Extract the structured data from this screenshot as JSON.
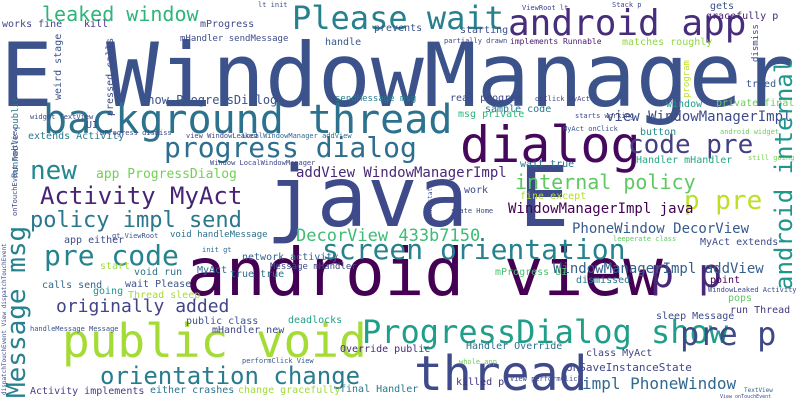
{
  "words": [
    {
      "text": "E WindowManager",
      "color": "#3b528b",
      "vertical": false
    },
    {
      "text": "android view",
      "color": "#440154",
      "vertical": false
    },
    {
      "text": "java E",
      "color": "#3e4a89",
      "vertical": false
    },
    {
      "text": "dialog",
      "color": "#46085c",
      "vertical": false
    },
    {
      "text": "background thread",
      "color": "#2c728e",
      "vertical": false
    },
    {
      "text": "public void",
      "color": "#a5db36",
      "vertical": false
    },
    {
      "text": "thread",
      "color": "#3e4a89",
      "vertical": false
    },
    {
      "text": "android app",
      "color": "#472d7b",
      "vertical": false
    },
    {
      "text": "Please wait",
      "color": "#27808e",
      "vertical": false
    },
    {
      "text": "ProgressDialog show",
      "color": "#1f9e89",
      "vertical": false
    },
    {
      "text": "progress dialog",
      "color": "#2e6e8e",
      "vertical": false
    },
    {
      "text": "code pre",
      "color": "#433e85",
      "vertical": false
    },
    {
      "text": "p pre",
      "color": "#bddf26",
      "vertical": false
    },
    {
      "text": "p p",
      "color": "#482878",
      "vertical": false
    },
    {
      "text": "pre p",
      "color": "#3e4989",
      "vertical": false
    },
    {
      "text": "screen orientation",
      "color": "#26828e",
      "vertical": false
    },
    {
      "text": "orientation change",
      "color": "#287c8e",
      "vertical": false
    },
    {
      "text": "Activity MyAct",
      "color": "#482475",
      "vertical": false
    },
    {
      "text": "policy impl send",
      "color": "#2a778e",
      "vertical": false
    },
    {
      "text": "pre code",
      "color": "#25838e",
      "vertical": false
    },
    {
      "text": "new",
      "color": "#23888e",
      "vertical": false
    },
    {
      "text": "internal policy",
      "color": "#5ec962",
      "vertical": false
    },
    {
      "text": "DecorView 433b7150",
      "color": "#3dbc74",
      "vertical": false
    },
    {
      "text": "originally added",
      "color": "#414487",
      "vertical": false
    },
    {
      "text": "leaked window",
      "color": "#2fb47c",
      "vertical": false
    },
    {
      "text": "view WindowManagerImpl",
      "color": "#3e4c8a",
      "vertical": false
    },
    {
      "text": "WindowManagerImpl java",
      "color": "#440154",
      "vertical": false
    },
    {
      "text": "PhoneWindow DecorView",
      "color": "#375a8c",
      "vertical": false
    },
    {
      "text": "WindowManagerImpl addView",
      "color": "#34608d",
      "vertical": false
    },
    {
      "text": "impl PhoneWindow",
      "color": "#31688e",
      "vertical": false
    },
    {
      "text": "addView WindowManagerImpl",
      "color": "#482878",
      "vertical": false
    },
    {
      "text": "show ProgressDialog",
      "color": "#3b528b",
      "vertical": false
    },
    {
      "text": "app ProgressDialog",
      "color": "#73d055",
      "vertical": false
    },
    {
      "text": "onSaveInstanceState",
      "color": "#3f4788",
      "vertical": false
    },
    {
      "text": "class MyAct",
      "color": "#404387",
      "vertical": false
    },
    {
      "text": "real program",
      "color": "#3e4a89",
      "vertical": false
    },
    {
      "text": "sample code",
      "color": "#2a788e",
      "vertical": false
    },
    {
      "text": "matches roughly",
      "color": "#8fd744",
      "vertical": false
    },
    {
      "text": "implements Runnable",
      "color": "#481a6c",
      "vertical": false
    },
    {
      "text": "fine except",
      "color": "#b5de2b",
      "vertical": false
    },
    {
      "text": "dismissed",
      "color": "#2a788e",
      "vertical": false
    },
    {
      "text": "point",
      "color": "#440154",
      "vertical": false
    },
    {
      "text": "sleep Message",
      "color": "#3e4a89",
      "vertical": false
    },
    {
      "text": "run Thread",
      "color": "#443983",
      "vertical": false
    },
    {
      "text": "change gracefully",
      "color": "#9fda3a",
      "vertical": false
    },
    {
      "text": "Activity implements",
      "color": "#433e85",
      "vertical": false
    },
    {
      "text": "either crashes",
      "color": "#2b748e",
      "vertical": false
    },
    {
      "text": "calls send",
      "color": "#31678e",
      "vertical": false
    },
    {
      "text": "going",
      "color": "#1f978b",
      "vertical": false
    },
    {
      "text": "Thread sleep",
      "color": "#a8db34",
      "vertical": false
    },
    {
      "text": "wait Please",
      "color": "#3b528b",
      "vertical": false
    },
    {
      "text": "void run",
      "color": "#2c728e",
      "vertical": false
    },
    {
      "text": "app either",
      "color": "#3e4a89",
      "vertical": false
    },
    {
      "text": "mHandler sendMessage",
      "color": "#3e4c8a",
      "vertical": false
    },
    {
      "text": "works fine",
      "color": "#404588",
      "vertical": false
    },
    {
      "text": "kill",
      "color": "#46337f",
      "vertical": false
    },
    {
      "text": "handle",
      "color": "#38588c",
      "vertical": false
    },
    {
      "text": "prevents",
      "color": "#3b528b",
      "vertical": false
    },
    {
      "text": "starting",
      "color": "#3c4f8a",
      "vertical": false
    },
    {
      "text": "mProgress",
      "color": "#3e4c8a",
      "vertical": false
    },
    {
      "text": "gets",
      "color": "#3b528b",
      "vertical": false
    },
    {
      "text": "gracefully p",
      "color": "#482475",
      "vertical": false
    },
    {
      "text": "window",
      "color": "#1e9c89",
      "vertical": false
    },
    {
      "text": "private final",
      "color": "#6ccd5a",
      "vertical": false
    },
    {
      "text": "button",
      "color": "#23898e",
      "vertical": false
    },
    {
      "text": "tried",
      "color": "#39568c",
      "vertical": false
    },
    {
      "text": "wait true",
      "color": "#2d708e",
      "vertical": false
    },
    {
      "text": "work",
      "color": "#3e4a89",
      "vertical": false
    },
    {
      "text": "Handler mHandler",
      "color": "#22a884",
      "vertical": false
    },
    {
      "text": "msg private",
      "color": "#2fb47c",
      "vertical": false
    },
    {
      "text": "sendMessage msg",
      "color": "#287c8e",
      "vertical": false
    },
    {
      "text": "network activity",
      "color": "#33638d",
      "vertical": false
    },
    {
      "text": "true true",
      "color": "#2c718e",
      "vertical": false
    },
    {
      "text": "void handleMessage",
      "color": "#2d708e",
      "vertical": false
    },
    {
      "text": "mProgress UI",
      "color": "#4ac16d",
      "vertical": false
    },
    {
      "text": "Message mHandler",
      "color": "#3e4a89",
      "vertical": false
    },
    {
      "text": "public class",
      "color": "#3b528b",
      "vertical": false
    },
    {
      "text": "deadlocks",
      "color": "#1fa187",
      "vertical": false
    },
    {
      "text": "Handler Override",
      "color": "#2c718e",
      "vertical": false
    },
    {
      "text": "Override public",
      "color": "#472c7a",
      "vertical": false
    },
    {
      "text": "final Handler",
      "color": "#2a788e",
      "vertical": false
    },
    {
      "text": "killed p",
      "color": "#46337f",
      "vertical": false
    },
    {
      "text": "mHandler new",
      "color": "#3f4788",
      "vertical": false
    },
    {
      "text": "pops",
      "color": "#5ec962",
      "vertical": false
    },
    {
      "text": "extends Activity",
      "color": "#2a788e",
      "vertical": false
    },
    {
      "text": "MyAct extends",
      "color": "#3e4a89",
      "vertical": false
    },
    {
      "text": "UI",
      "color": "#3e4a89",
      "vertical": false
    },
    {
      "text": "MyAct",
      "color": "#31688e",
      "vertical": false
    },
    {
      "text": "start",
      "color": "#9fda3a",
      "vertical": false
    },
    {
      "text": "whole app",
      "color": "#6ccd5a",
      "vertical": false
    },
    {
      "text": "state Home",
      "color": "#3e4a89",
      "vertical": false
    },
    {
      "text": "onClick MyAct",
      "color": "#404588",
      "vertical": false
    },
    {
      "text": "starts working",
      "color": "#3e4a89",
      "vertical": false
    },
    {
      "text": "MyAct onClick",
      "color": "#39568c",
      "vertical": false
    },
    {
      "text": "android widget",
      "color": "#6ccd5a",
      "vertical": false
    },
    {
      "text": "still going",
      "color": "#7ad151",
      "vertical": false
    },
    {
      "text": "partially drawn",
      "color": "#3f4788",
      "vertical": false
    },
    {
      "text": "ViewRoot lt",
      "color": "#3f4788",
      "vertical": false
    },
    {
      "text": "lt init",
      "color": "#3b528b",
      "vertical": false
    },
    {
      "text": "Stack p",
      "color": "#3e4a89",
      "vertical": false
    },
    {
      "text": "view WindowLeaked",
      "color": "#3e4a89",
      "vertical": false
    },
    {
      "text": "LocalWindowManager addView",
      "color": "#31688e",
      "vertical": false
    },
    {
      "text": "Window LocalWindowManager",
      "color": "#3f4788",
      "vertical": false
    },
    {
      "text": "mProgress dismiss",
      "color": "#3e4a89",
      "vertical": false
    },
    {
      "text": "gt ViewRoot",
      "color": "#3b528b",
      "vertical": false
    },
    {
      "text": "init gt",
      "color": "#31688e",
      "vertical": false
    },
    {
      "text": "WindowLeaked Activity",
      "color": "#3e4a89",
      "vertical": false
    },
    {
      "text": "View onTouchEvent",
      "color": "#3e4a89",
      "vertical": false
    },
    {
      "text": "TextView",
      "color": "#31688e",
      "vertical": false
    },
    {
      "text": "View performClick",
      "color": "#3e4a89",
      "vertical": false
    },
    {
      "text": "performClick View",
      "color": "#39568c",
      "vertical": false
    },
    {
      "text": "handleMessage Message",
      "color": "#3b528b",
      "vertical": false
    },
    {
      "text": "leeperate class",
      "color": "#5ec962",
      "vertical": false
    },
    {
      "text": "widget TextView",
      "color": "#3e4a89",
      "vertical": false
    },
    {
      "text": "Message msg",
      "color": "#26828e",
      "vertical": true
    },
    {
      "text": "android internal",
      "color": "#1f968b",
      "vertical": true
    },
    {
      "text": "weird stage",
      "color": "#3b528b",
      "vertical": true
    },
    {
      "text": "Runnable public",
      "color": "#2c728e",
      "vertical": true
    },
    {
      "text": "pressed calls",
      "color": "#3e4a89",
      "vertical": true
    },
    {
      "text": "dismiss",
      "color": "#3e4a89",
      "vertical": true
    },
    {
      "text": "program",
      "color": "#bddf26",
      "vertical": true
    },
    {
      "text": "onTouchEvent TextView",
      "color": "#3e4a89",
      "vertical": true
    },
    {
      "text": "dispatchTouchEvent View dispatchTouchEvent",
      "color": "#3e4a89",
      "vertical": true
    },
    {
      "text": "drawn state",
      "color": "#3e4a89",
      "vertical": true
    }
  ]
}
